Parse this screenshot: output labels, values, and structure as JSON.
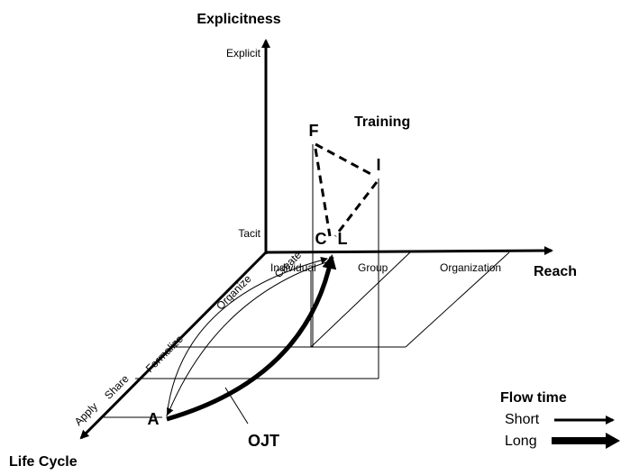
{
  "axes": {
    "vertical": {
      "title": "Explicitness",
      "high": "Explicit",
      "low": "Tacit"
    },
    "horizontal": {
      "title": "Reach",
      "levels": [
        "Individual",
        "Group",
        "Organization"
      ]
    },
    "depth": {
      "title": "Life Cycle",
      "stages": [
        "Create",
        "Organize",
        "Formalize",
        "Share",
        "Apply"
      ]
    }
  },
  "points": [
    "F",
    "I",
    "C",
    "L",
    "A"
  ],
  "paths": [
    "Training",
    "OJT"
  ],
  "legend": {
    "title": "Flow time",
    "items": [
      "Short",
      "Long"
    ]
  }
}
